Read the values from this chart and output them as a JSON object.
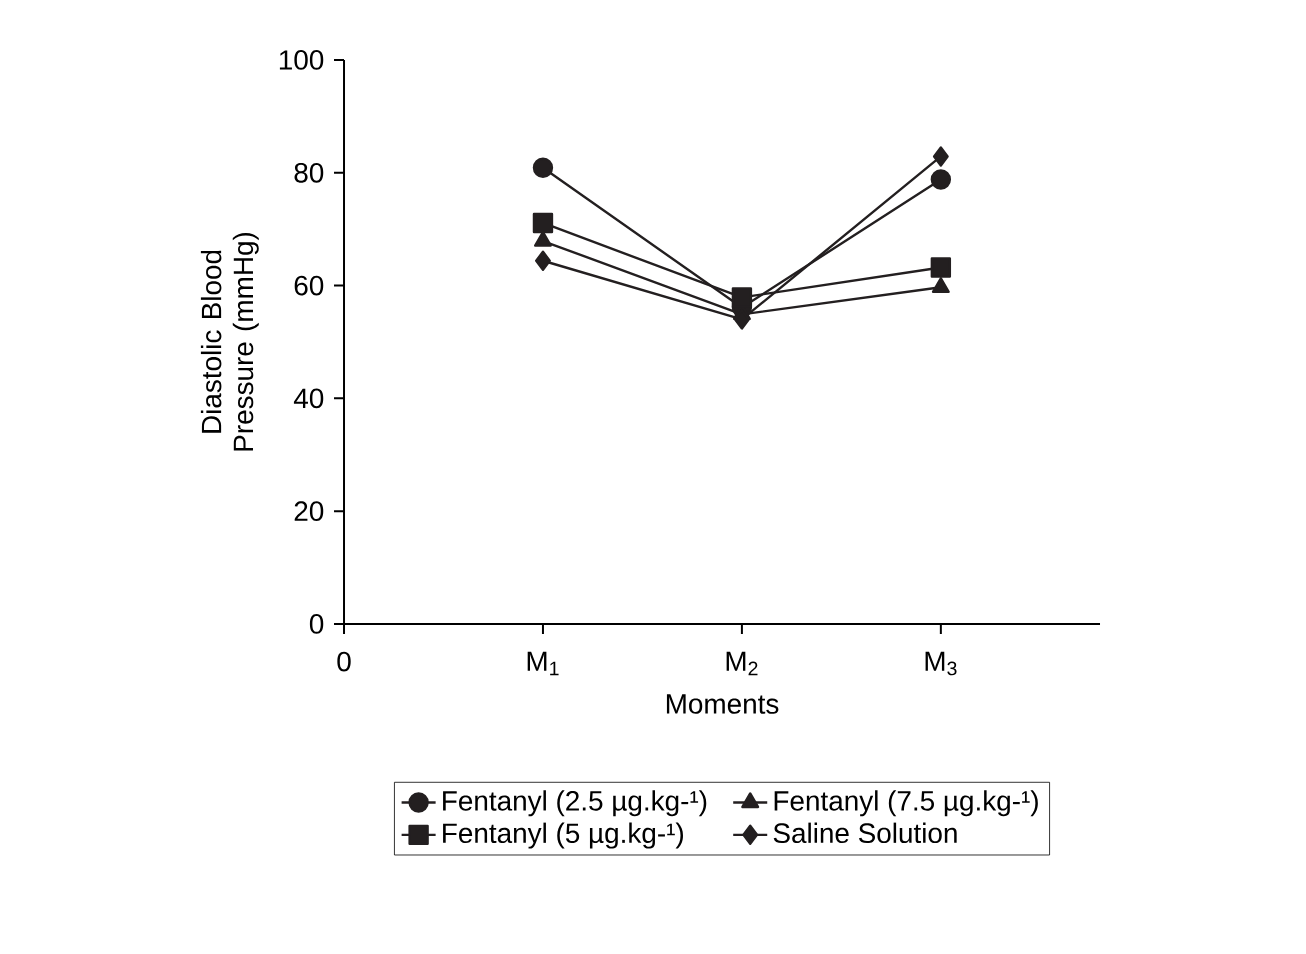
{
  "chart_data": {
    "type": "line",
    "xlabel": "Moments",
    "ylabel": "Diastolic Blood Pressure (mmHg)",
    "x": [
      1,
      2,
      3
    ],
    "xlim": [
      0,
      3.8
    ],
    "xticks": [
      0,
      {
        "value": 1,
        "label": "M$_{1}$"
      },
      {
        "value": 2,
        "label": "M$_{2}$"
      },
      {
        "value": 3,
        "label": "M$_{3}$"
      }
    ],
    "ylim": [
      0,
      100
    ],
    "yticks": [
      0,
      20,
      40,
      60,
      80,
      100
    ],
    "legend": "bottom",
    "grid": false,
    "line_style": "solid",
    "series": [
      {
        "name": "Fentanyl (2.5 µg.kg-¹)",
        "color": "#231f20",
        "marker": "circle",
        "values": [
          80.9,
          56.1,
          78.8
        ]
      },
      {
        "name": "Fentanyl (7.5 µg.kg-¹)",
        "color": "#231f20",
        "marker": "triangle",
        "values": [
          67.9,
          54.9,
          59.7
        ]
      },
      {
        "name": "Fentanyl (5 µg.kg-¹)",
        "color": "#231f20",
        "marker": "square",
        "values": [
          71.1,
          57.9,
          63.2
        ]
      },
      {
        "name": "Saline Solution",
        "color": "#231f20",
        "marker": "diamond",
        "values": [
          64.4,
          54.0,
          82.9
        ]
      }
    ]
  }
}
